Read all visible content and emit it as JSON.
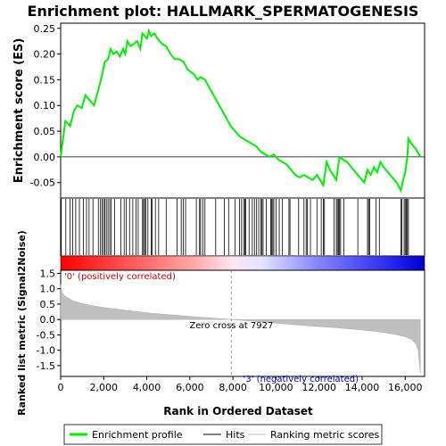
{
  "chart_data": {
    "type": "line",
    "title": "Enrichment plot: HALLMARK_SPERMATOGENESIS",
    "top_panel": {
      "ylabel": "Enrichment score (ES)",
      "ylim": [
        -0.08,
        0.26
      ],
      "yticks": [
        -0.05,
        0.0,
        0.05,
        0.1,
        0.15,
        0.2,
        0.25
      ],
      "ytick_labels": [
        "-0.05",
        "0.00",
        "0.05",
        "0.10",
        "0.15",
        "0.20",
        "0.25"
      ],
      "series_name": "Enrichment profile",
      "color": "#00ee00",
      "x": [
        0,
        220,
        440,
        620,
        780,
        980,
        1150,
        1350,
        1550,
        1750,
        1900,
        2050,
        2200,
        2320,
        2450,
        2600,
        2750,
        2900,
        3000,
        3100,
        3250,
        3400,
        3550,
        3700,
        3800,
        3900,
        4000,
        4100,
        4200,
        4350,
        4500,
        4700,
        4900,
        5100,
        5300,
        5500,
        5700,
        5900,
        6050,
        6200,
        6350,
        6500,
        6700,
        6900,
        7100,
        7300,
        7500,
        7700,
        7900,
        8100,
        8300,
        8500,
        8700,
        8900,
        9100,
        9300,
        9500,
        9700,
        9900,
        10100,
        10300,
        10500,
        10700,
        10900,
        11100,
        11300,
        11500,
        11700,
        11900,
        12050,
        12200,
        12350,
        12500,
        12650,
        12800,
        12950,
        13100,
        13300,
        13500,
        13700,
        13900,
        14100,
        14250,
        14400,
        14550,
        14700,
        14850,
        15000,
        15200,
        15400,
        15600,
        15800,
        15900,
        16000,
        16100,
        16150,
        16300,
        16500,
        16700
      ],
      "y": [
        0.0,
        0.07,
        0.06,
        0.09,
        0.1,
        0.095,
        0.12,
        0.11,
        0.1,
        0.13,
        0.155,
        0.185,
        0.19,
        0.21,
        0.2,
        0.205,
        0.195,
        0.21,
        0.2,
        0.225,
        0.215,
        0.22,
        0.225,
        0.21,
        0.24,
        0.235,
        0.23,
        0.245,
        0.235,
        0.24,
        0.23,
        0.22,
        0.215,
        0.2,
        0.19,
        0.19,
        0.185,
        0.17,
        0.165,
        0.16,
        0.15,
        0.155,
        0.15,
        0.135,
        0.12,
        0.105,
        0.09,
        0.075,
        0.06,
        0.05,
        0.04,
        0.035,
        0.03,
        0.025,
        0.02,
        0.01,
        0.005,
        0.0,
        0.005,
        -0.005,
        -0.01,
        -0.015,
        -0.025,
        -0.035,
        -0.04,
        -0.035,
        -0.04,
        -0.045,
        -0.035,
        -0.045,
        -0.055,
        -0.01,
        -0.025,
        -0.035,
        -0.045,
        0.0,
        -0.005,
        -0.01,
        -0.02,
        -0.03,
        -0.04,
        -0.05,
        -0.025,
        -0.035,
        -0.02,
        -0.03,
        -0.01,
        -0.02,
        -0.03,
        -0.04,
        -0.05,
        -0.065,
        -0.045,
        -0.03,
        0.0,
        0.035,
        0.025,
        0.015,
        0.0
      ]
    },
    "hits_panel": {
      "series_name": "Hits",
      "positions": [
        30,
        240,
        430,
        560,
        700,
        870,
        1050,
        1200,
        1320,
        1500,
        1750,
        1850,
        1920,
        1990,
        2050,
        2120,
        2200,
        2280,
        2350,
        2500,
        2800,
        2950,
        3050,
        3200,
        3350,
        3500,
        3600,
        3800,
        3850,
        3900,
        3950,
        4050,
        4200,
        4250,
        4400,
        4550,
        4900,
        5400,
        5600,
        5700,
        5800,
        6300,
        6450,
        6500,
        6600,
        6700,
        7200,
        7600,
        7800,
        8100,
        8300,
        8400,
        8500,
        8550,
        8600,
        8750,
        8900,
        9000,
        9100,
        9200,
        9300,
        9350,
        9400,
        9550,
        9750,
        9800,
        9850,
        9900,
        10000,
        10150,
        10300,
        10600,
        10650,
        11050,
        11300,
        11400,
        11450,
        11600,
        11900,
        12100,
        12200,
        12250,
        12700,
        12800,
        12850,
        12900,
        12950,
        13000,
        13150,
        13800,
        14250,
        14300,
        14350,
        14650,
        14800,
        15800,
        15850,
        15950,
        16000,
        16050,
        16100,
        16150
      ]
    },
    "rank_bar": {
      "label_positive": "'0' (positively correlated)",
      "label_negative": "'3' (negatively correlated)",
      "color_positive": "#ff0000",
      "color_negative": "#0000ff"
    },
    "bottom_panel": {
      "ylabel": "Ranked list metric (Signal2Noise)",
      "series_name": "Ranking metric scores",
      "ylim": [
        -1.85,
        1.6
      ],
      "yticks": [
        -1.5,
        -1.0,
        -0.5,
        0.0,
        0.5,
        1.0,
        1.5
      ],
      "ytick_labels": [
        "-1.5",
        "-1.0",
        "-0.5",
        "0.0",
        "0.5",
        "1.0",
        "1.5"
      ],
      "color": "#bfbfbf",
      "zero_cross": 7927,
      "zero_cross_label": "Zero cross at 7927",
      "x": [
        0,
        50,
        150,
        300,
        600,
        1000,
        1500,
        2000,
        3000,
        4000,
        5000,
        6000,
        7000,
        7927,
        9000,
        10000,
        11000,
        12000,
        13000,
        14000,
        15000,
        15500,
        16000,
        16300,
        16500,
        16600,
        16700
      ],
      "y": [
        1.15,
        0.9,
        0.8,
        0.72,
        0.6,
        0.52,
        0.45,
        0.39,
        0.3,
        0.22,
        0.16,
        0.1,
        0.05,
        0.0,
        -0.06,
        -0.12,
        -0.18,
        -0.23,
        -0.28,
        -0.34,
        -0.42,
        -0.48,
        -0.56,
        -0.65,
        -0.8,
        -1.0,
        -1.75
      ]
    },
    "xlabel": "Rank in Ordered Dataset",
    "xlim": [
      0,
      16900
    ],
    "xticks": [
      0,
      2000,
      4000,
      6000,
      8000,
      10000,
      12000,
      14000,
      16000
    ],
    "xtick_labels": [
      "0",
      "2,000",
      "4,000",
      "6,000",
      "8,000",
      "10,000",
      "12,000",
      "14,000",
      "16,000"
    ],
    "legend": {
      "placement": "bottom",
      "items": [
        {
          "label": "Enrichment profile",
          "color": "#00ee00"
        },
        {
          "label": "Hits",
          "color": "#000000"
        },
        {
          "label": "Ranking metric scores",
          "color": "#bfbfbf"
        }
      ]
    }
  }
}
